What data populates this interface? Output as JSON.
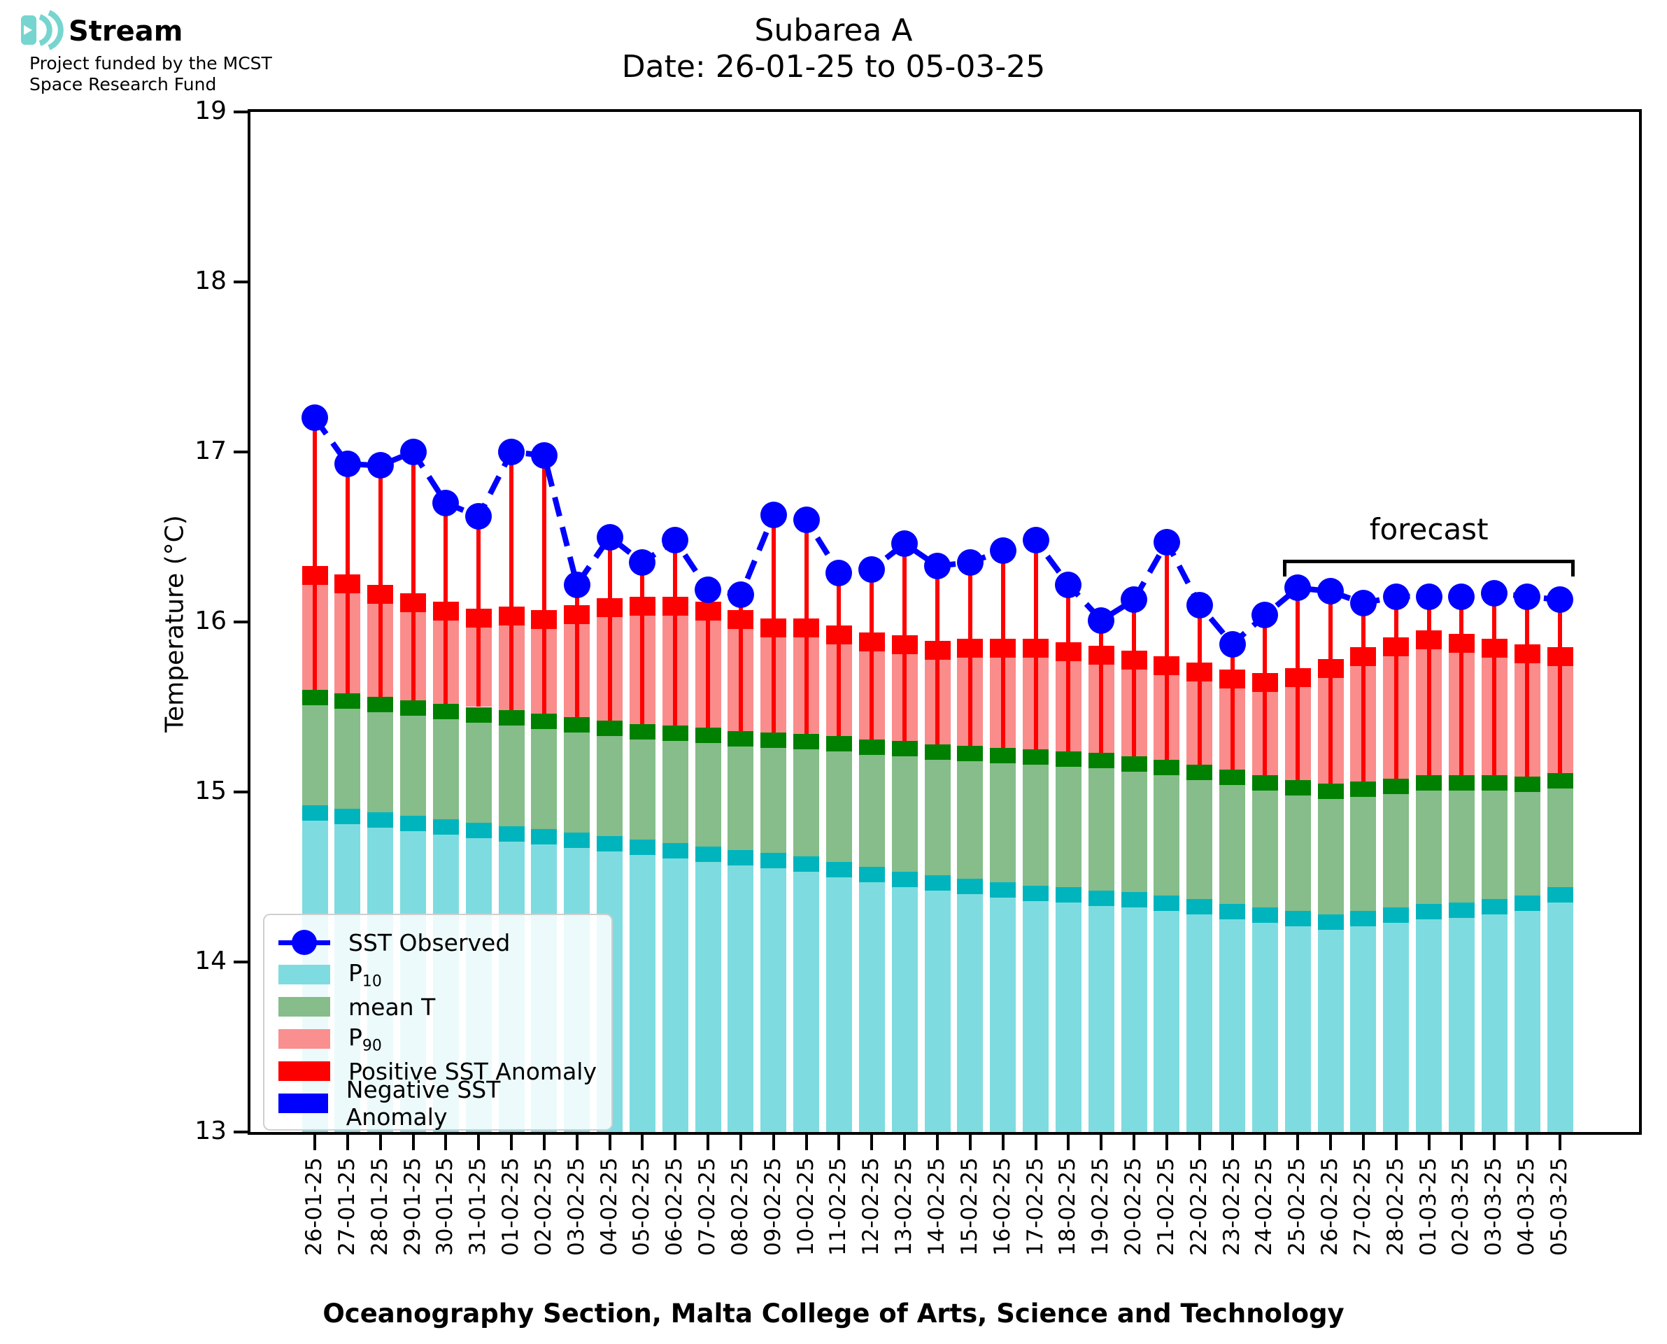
{
  "logo": {
    "brand": "Stream",
    "subtitle_line1": "Project funded by the MCST",
    "subtitle_line2": "Space Research Fund",
    "icon": "sound-wave-arcs",
    "icon_color": "#76d5cf"
  },
  "title": {
    "line1": "Subarea A",
    "line2": "Date: 26-01-25 to 05-03-25"
  },
  "axes": {
    "ylabel": "Temperature (°C)",
    "xlabel": "Oceanography Section, Malta College of Arts, Science and Technology"
  },
  "annotations": {
    "forecast_label": "forecast"
  },
  "legend": {
    "items": [
      {
        "label": "SST Observed",
        "swatch": "blue-line-dot",
        "color": "#0000ff"
      },
      {
        "label": "P",
        "subscript": "10",
        "swatch": "rect",
        "color": "#7edce0"
      },
      {
        "label": "mean T",
        "swatch": "rect",
        "color": "#86bd8a"
      },
      {
        "label": "P",
        "subscript": "90",
        "swatch": "rect",
        "color": "#f98f8f"
      },
      {
        "label": "Positive SST Anomaly",
        "swatch": "rect",
        "color": "#ff0000"
      },
      {
        "label": "Negative SST Anomaly",
        "swatch": "rect",
        "color": "#0000ff"
      }
    ]
  },
  "colors": {
    "observed": "#0000ff",
    "stem": "#ff0000",
    "p10_fill": "#7edce0",
    "p10_cap": "#00b4be",
    "mean_fill": "#86bd8a",
    "mean_cap": "#008000",
    "p90_fill": "#fb8c8c",
    "p90_cap": "#ff0000",
    "axis": "#000000"
  },
  "chart_data": {
    "type": "bar",
    "title": "Subarea A — Date: 26-01-25 to 05-03-25",
    "xlabel": "Oceanography Section, Malta College of Arts, Science and Technology",
    "ylabel": "Temperature (°C)",
    "ylim": [
      13,
      19
    ],
    "yticks": [
      13,
      14,
      15,
      16,
      17,
      18,
      19
    ],
    "grid": false,
    "legend_position": "lower left",
    "forecast_start_index": 30,
    "categories": [
      "26-01-25",
      "27-01-25",
      "28-01-25",
      "29-01-25",
      "30-01-25",
      "31-01-25",
      "01-02-25",
      "02-02-25",
      "03-02-25",
      "04-02-25",
      "05-02-25",
      "06-02-25",
      "07-02-25",
      "08-02-25",
      "09-02-25",
      "10-02-25",
      "11-02-25",
      "12-02-25",
      "13-02-25",
      "14-02-25",
      "15-02-25",
      "16-02-25",
      "17-02-25",
      "18-02-25",
      "19-02-25",
      "20-02-25",
      "21-02-25",
      "22-02-25",
      "23-02-25",
      "24-02-25",
      "25-02-25",
      "26-02-25",
      "27-02-25",
      "28-02-25",
      "01-03-25",
      "02-03-25",
      "03-03-25",
      "04-03-25",
      "05-03-25"
    ],
    "series": [
      {
        "name": "SST Observed",
        "style": "dashed-line-markers-with-red-stems",
        "values": [
          17.2,
          16.93,
          16.92,
          17.0,
          16.7,
          16.62,
          17.0,
          16.98,
          16.22,
          16.5,
          16.35,
          16.48,
          16.19,
          16.16,
          16.63,
          16.6,
          16.29,
          16.31,
          16.46,
          16.33,
          16.35,
          16.42,
          16.48,
          16.22,
          16.01,
          16.13,
          16.47,
          16.1,
          15.87,
          16.04,
          16.2,
          16.18,
          16.11,
          16.15,
          16.15,
          16.15,
          16.17,
          16.15,
          16.13
        ]
      },
      {
        "name": "P10",
        "style": "bar-cyan",
        "values": [
          14.92,
          14.9,
          14.88,
          14.86,
          14.84,
          14.82,
          14.8,
          14.78,
          14.76,
          14.74,
          14.72,
          14.7,
          14.68,
          14.66,
          14.64,
          14.62,
          14.59,
          14.56,
          14.53,
          14.51,
          14.49,
          14.47,
          14.45,
          14.44,
          14.42,
          14.41,
          14.39,
          14.37,
          14.34,
          14.32,
          14.3,
          14.28,
          14.3,
          14.32,
          14.34,
          14.35,
          14.37,
          14.39,
          14.44
        ]
      },
      {
        "name": "mean T",
        "style": "bar-green",
        "values": [
          15.6,
          15.58,
          15.56,
          15.54,
          15.52,
          15.5,
          15.48,
          15.46,
          15.44,
          15.42,
          15.4,
          15.39,
          15.38,
          15.36,
          15.35,
          15.34,
          15.33,
          15.31,
          15.3,
          15.28,
          15.27,
          15.26,
          15.25,
          15.24,
          15.23,
          15.21,
          15.19,
          15.16,
          15.13,
          15.1,
          15.07,
          15.05,
          15.06,
          15.08,
          15.1,
          15.1,
          15.1,
          15.09,
          15.11
        ]
      },
      {
        "name": "P90",
        "style": "bar-salmon-red-cap",
        "values": [
          16.33,
          16.28,
          16.22,
          16.17,
          16.12,
          16.08,
          16.09,
          16.07,
          16.1,
          16.14,
          16.15,
          16.15,
          16.12,
          16.07,
          16.02,
          16.02,
          15.98,
          15.94,
          15.92,
          15.89,
          15.9,
          15.9,
          15.9,
          15.88,
          15.86,
          15.83,
          15.8,
          15.76,
          15.72,
          15.7,
          15.73,
          15.78,
          15.85,
          15.91,
          15.95,
          15.93,
          15.9,
          15.87,
          15.85
        ]
      }
    ]
  }
}
